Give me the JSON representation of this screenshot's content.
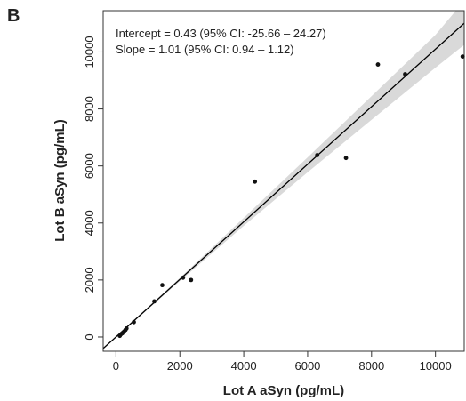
{
  "panel_label": "B",
  "chart_data": {
    "type": "scatter",
    "x_label": "Lot A aSyn (pg/mL)",
    "y_label": "Lot B aSyn (pg/mL)",
    "annotations": [
      "Intercept = 0.43 (95% CI: -25.66 – 24.27)",
      "Slope = 1.01 (95% CI: 0.94 – 1.12)"
    ],
    "x": [
      120,
      150,
      200,
      250,
      300,
      330,
      560,
      1200,
      1450,
      2100,
      2350,
      4350,
      6300,
      7200,
      8200,
      9050,
      10850
    ],
    "values": [
      40,
      90,
      130,
      180,
      250,
      300,
      520,
      1250,
      1820,
      2080,
      2000,
      5450,
      6380,
      6280,
      9560,
      9220,
      9840
    ],
    "color": "#111111",
    "fit": {
      "intercept": 0.43,
      "slope": 1.01,
      "color": "#000000"
    },
    "ci_band": {
      "x": [
        0,
        2000,
        4000,
        6000,
        8000,
        10000,
        10900
      ],
      "lower": [
        -20,
        1960,
        3900,
        5780,
        7620,
        9450,
        10250
      ],
      "upper": [
        30,
        2070,
        4180,
        6300,
        8450,
        10600,
        11800
      ],
      "color": "#d9d9d9"
    },
    "xlim": [
      -400,
      10900
    ],
    "ylim": [
      -500,
      11450
    ],
    "xticks": [
      0,
      2000,
      4000,
      6000,
      8000,
      10000
    ],
    "yticks": [
      0,
      2000,
      4000,
      6000,
      8000,
      10000
    ]
  }
}
